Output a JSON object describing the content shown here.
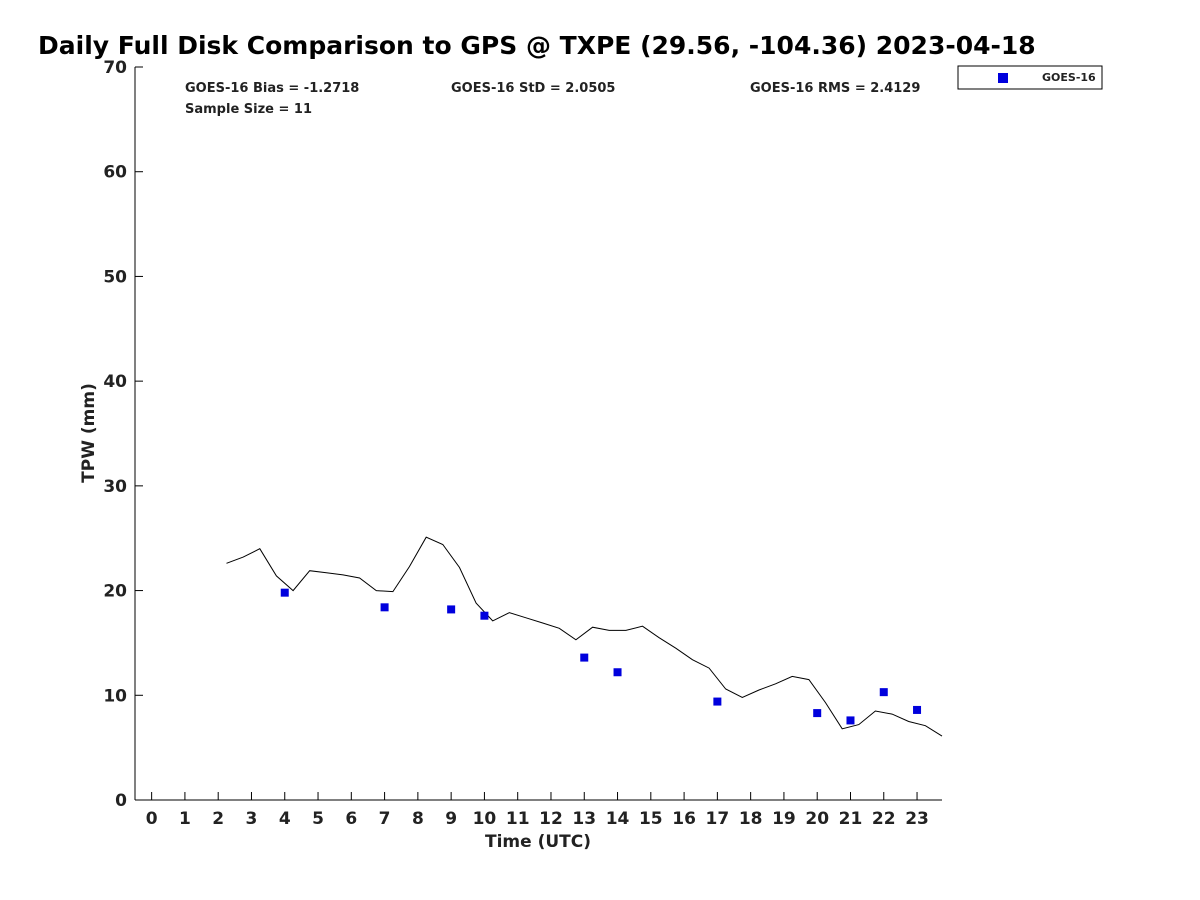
{
  "chart_data": {
    "type": "scatter",
    "title": "Daily Full Disk Comparison to GPS @ TXPE (29.56, -104.36) 2023-04-18",
    "xlabel": "Time (UTC)",
    "ylabel": "TPW (mm)",
    "xlim": [
      -0.5,
      23.75
    ],
    "ylim": [
      0,
      70
    ],
    "x_ticks": [
      0,
      1,
      2,
      3,
      4,
      5,
      6,
      7,
      8,
      9,
      10,
      11,
      12,
      13,
      14,
      15,
      16,
      17,
      18,
      19,
      20,
      21,
      22,
      23
    ],
    "y_ticks": [
      0,
      10,
      20,
      30,
      40,
      50,
      60,
      70
    ],
    "grid": false,
    "legend": {
      "position": "top-right",
      "entries": [
        "GOES-16"
      ]
    },
    "stats": {
      "bias": "GOES-16 Bias = -1.2718",
      "std": "GOES-16 StD = 2.0505",
      "rms": "GOES-16 RMS = 2.4129",
      "sample": "Sample Size = 11"
    },
    "series": [
      {
        "name": "GOES-16",
        "kind": "scatter",
        "color": "#0000dd",
        "x": [
          4.0,
          7.0,
          9.0,
          10.0,
          13.0,
          14.0,
          17.0,
          20.0,
          21.0,
          22.0,
          23.0
        ],
        "y": [
          19.8,
          18.4,
          18.2,
          17.6,
          13.6,
          12.2,
          9.4,
          8.3,
          7.6,
          10.3,
          8.6
        ]
      },
      {
        "kind": "line",
        "color": "#000000",
        "x": [
          2.25,
          2.75,
          3.25,
          3.75,
          4.25,
          4.75,
          5.25,
          5.75,
          6.25,
          6.75,
          7.25,
          7.75,
          8.25,
          8.75,
          9.25,
          9.75,
          10.25,
          10.75,
          11.25,
          11.75,
          12.25,
          12.75,
          13.25,
          13.75,
          14.25,
          14.75,
          15.25,
          15.75,
          16.25,
          16.75,
          17.25,
          17.75,
          18.25,
          18.75,
          19.25,
          19.75,
          20.25,
          20.75,
          21.25,
          21.75,
          22.25,
          22.75,
          23.25,
          23.75
        ],
        "y": [
          22.6,
          23.2,
          24.0,
          21.4,
          20.0,
          21.9,
          21.7,
          21.5,
          21.2,
          20.0,
          19.9,
          22.3,
          25.1,
          24.4,
          22.2,
          18.8,
          17.1,
          17.9,
          17.4,
          16.9,
          16.4,
          15.3,
          16.5,
          16.2,
          16.2,
          16.6,
          15.5,
          14.5,
          13.4,
          12.6,
          10.6,
          9.8,
          10.5,
          11.1,
          11.8,
          11.5,
          9.3,
          6.8,
          7.2,
          8.5,
          8.2,
          7.5,
          7.1,
          6.1
        ]
      }
    ]
  }
}
